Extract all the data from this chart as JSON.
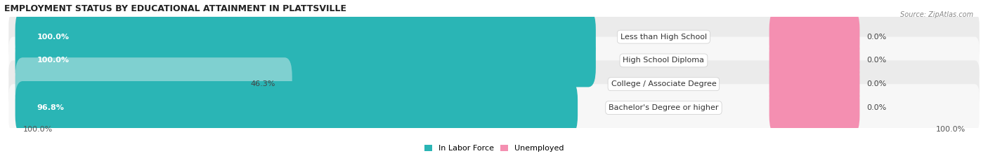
{
  "title": "EMPLOYMENT STATUS BY EDUCATIONAL ATTAINMENT IN PLATTSVILLE",
  "source": "Source: ZipAtlas.com",
  "categories": [
    "Less than High School",
    "High School Diploma",
    "College / Associate Degree",
    "Bachelor's Degree or higher"
  ],
  "labor_force_values": [
    100.0,
    100.0,
    46.3,
    96.8
  ],
  "unemployed_values": [
    0.0,
    0.0,
    0.0,
    0.0
  ],
  "labor_force_color_full": "#2ab5b5",
  "labor_force_color_partial": "#7fd0d0",
  "unemployed_color": "#f48fb1",
  "row_bg_odd": "#ebebeb",
  "row_bg_even": "#f7f7f7",
  "legend_labels": [
    "In Labor Force",
    "Unemployed"
  ],
  "bottom_left_label": "100.0%",
  "bottom_right_label": "100.0%",
  "title_fontsize": 9,
  "cat_fontsize": 8,
  "val_fontsize": 8,
  "source_fontsize": 7,
  "legend_fontsize": 8
}
